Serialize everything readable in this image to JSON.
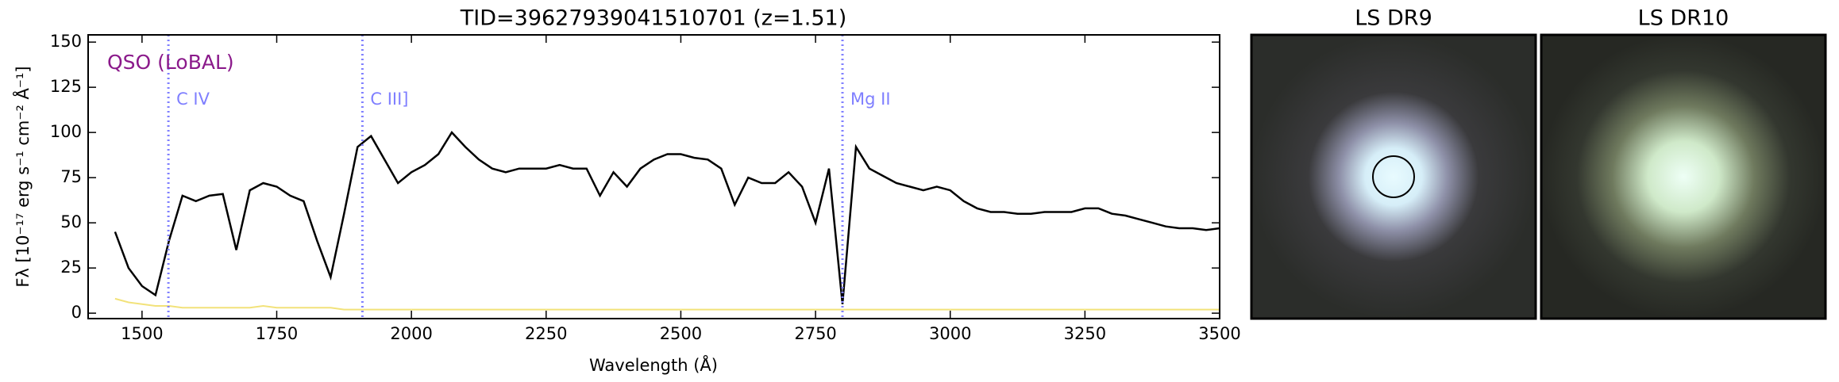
{
  "chart_data": {
    "type": "line",
    "title": "TID=39627939041510701 (z=1.51)",
    "xlabel": "Wavelength (Å)",
    "ylabel": "Fλ [10⁻¹⁷ erg s⁻¹ cm⁻² Å⁻¹]",
    "annotation": {
      "text": "QSO (LoBAL)",
      "color": "#8b1a8b"
    },
    "lines": [
      {
        "label": "C IV",
        "x": 1549
      },
      {
        "label": "C III]",
        "x": 1909
      },
      {
        "label": "Mg II",
        "x": 2800
      }
    ],
    "line_color": "#7f7fff",
    "xlim": [
      1400,
      3500
    ],
    "ylim": [
      -3,
      154
    ],
    "xticks": [
      1500,
      1750,
      2000,
      2250,
      2500,
      2750,
      3000,
      3250,
      3500
    ],
    "yticks": [
      0,
      25,
      50,
      75,
      100,
      125,
      150
    ],
    "x": [
      1450,
      1475,
      1500,
      1525,
      1550,
      1575,
      1600,
      1625,
      1650,
      1675,
      1700,
      1725,
      1750,
      1775,
      1800,
      1825,
      1850,
      1875,
      1900,
      1925,
      1950,
      1975,
      2000,
      2025,
      2050,
      2075,
      2100,
      2125,
      2150,
      2175,
      2200,
      2225,
      2250,
      2275,
      2300,
      2325,
      2350,
      2375,
      2400,
      2425,
      2450,
      2475,
      2500,
      2525,
      2550,
      2575,
      2600,
      2625,
      2650,
      2675,
      2700,
      2725,
      2750,
      2775,
      2800,
      2825,
      2850,
      2875,
      2900,
      2925,
      2950,
      2975,
      3000,
      3025,
      3050,
      3075,
      3100,
      3125,
      3150,
      3175,
      3200,
      3225,
      3250,
      3275,
      3300,
      3325,
      3350,
      3375,
      3400,
      3425,
      3450,
      3475,
      3500
    ],
    "series": [
      {
        "color": "#000000",
        "values": [
          45,
          25,
          15,
          10,
          40,
          65,
          62,
          65,
          66,
          35,
          68,
          72,
          70,
          65,
          62,
          40,
          20,
          55,
          92,
          98,
          85,
          72,
          78,
          82,
          88,
          100,
          92,
          85,
          80,
          78,
          80,
          80,
          80,
          82,
          80,
          80,
          65,
          78,
          70,
          80,
          85,
          88,
          88,
          86,
          85,
          80,
          60,
          75,
          72,
          72,
          78,
          70,
          50,
          80,
          5,
          92,
          80,
          76,
          72,
          70,
          68,
          70,
          68,
          62,
          58,
          56,
          56,
          55,
          55,
          56,
          56,
          56,
          58,
          58,
          55,
          54,
          52,
          50,
          48,
          47,
          47,
          46,
          47
        ]
      },
      {
        "color": "#f2e27a",
        "values": [
          8,
          6,
          5,
          4,
          4,
          3,
          3,
          3,
          3,
          3,
          3,
          4,
          3,
          3,
          3,
          3,
          3,
          2,
          2,
          2,
          2,
          2,
          2,
          2,
          2,
          2,
          2,
          2,
          2,
          2,
          2,
          2,
          2,
          2,
          2,
          2,
          2,
          2,
          2,
          2,
          2,
          2,
          2,
          2,
          2,
          2,
          2,
          2,
          2,
          2,
          2,
          2,
          2,
          2,
          2,
          2,
          2,
          2,
          2,
          2,
          2,
          2,
          2,
          2,
          2,
          2,
          2,
          2,
          2,
          2,
          2,
          2,
          2,
          2,
          2,
          2,
          2,
          2,
          2,
          2,
          2,
          2,
          2
        ]
      }
    ]
  },
  "images": [
    {
      "title": "LS DR9"
    },
    {
      "title": "LS DR10"
    }
  ]
}
